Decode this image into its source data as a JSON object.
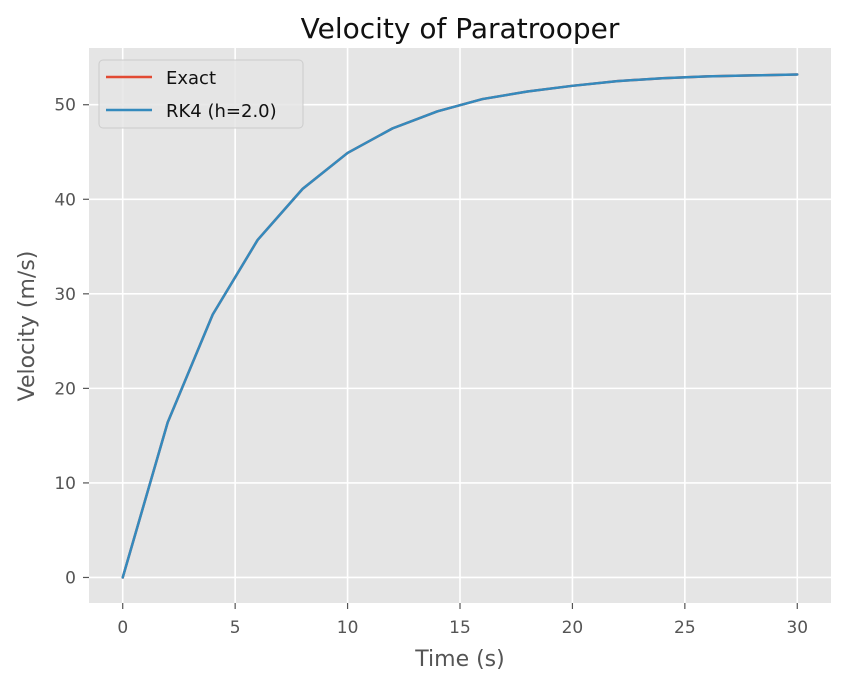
{
  "chart_data": {
    "type": "line",
    "title": "Velocity of Paratrooper",
    "xlabel": "Time (s)",
    "ylabel": "Velocity (m/s)",
    "xlim": [
      -1.5,
      31.5
    ],
    "ylim": [
      -2.7,
      56.0
    ],
    "x_ticks": [
      0,
      5,
      10,
      15,
      20,
      25,
      30
    ],
    "y_ticks": [
      0,
      10,
      20,
      30,
      40,
      50
    ],
    "grid": true,
    "legend_position": "top-left",
    "series": [
      {
        "name": "Exact",
        "color": "#E24A33",
        "x": [
          0,
          2,
          4,
          6,
          8,
          10,
          12,
          14,
          16,
          18,
          20,
          22,
          24,
          26,
          28,
          30
        ],
        "y": [
          0,
          16.4,
          27.8,
          35.7,
          41.1,
          44.9,
          47.5,
          49.3,
          50.6,
          51.4,
          52.0,
          52.5,
          52.8,
          53.0,
          53.1,
          53.2
        ]
      },
      {
        "name": "RK4 (h=2.0)",
        "color": "#348ABD",
        "x": [
          0,
          2,
          4,
          6,
          8,
          10,
          12,
          14,
          16,
          18,
          20,
          22,
          24,
          26,
          28,
          30
        ],
        "y": [
          0,
          16.4,
          27.8,
          35.7,
          41.1,
          44.9,
          47.5,
          49.3,
          50.6,
          51.4,
          52.0,
          52.5,
          52.8,
          53.0,
          53.1,
          53.2
        ]
      }
    ]
  }
}
